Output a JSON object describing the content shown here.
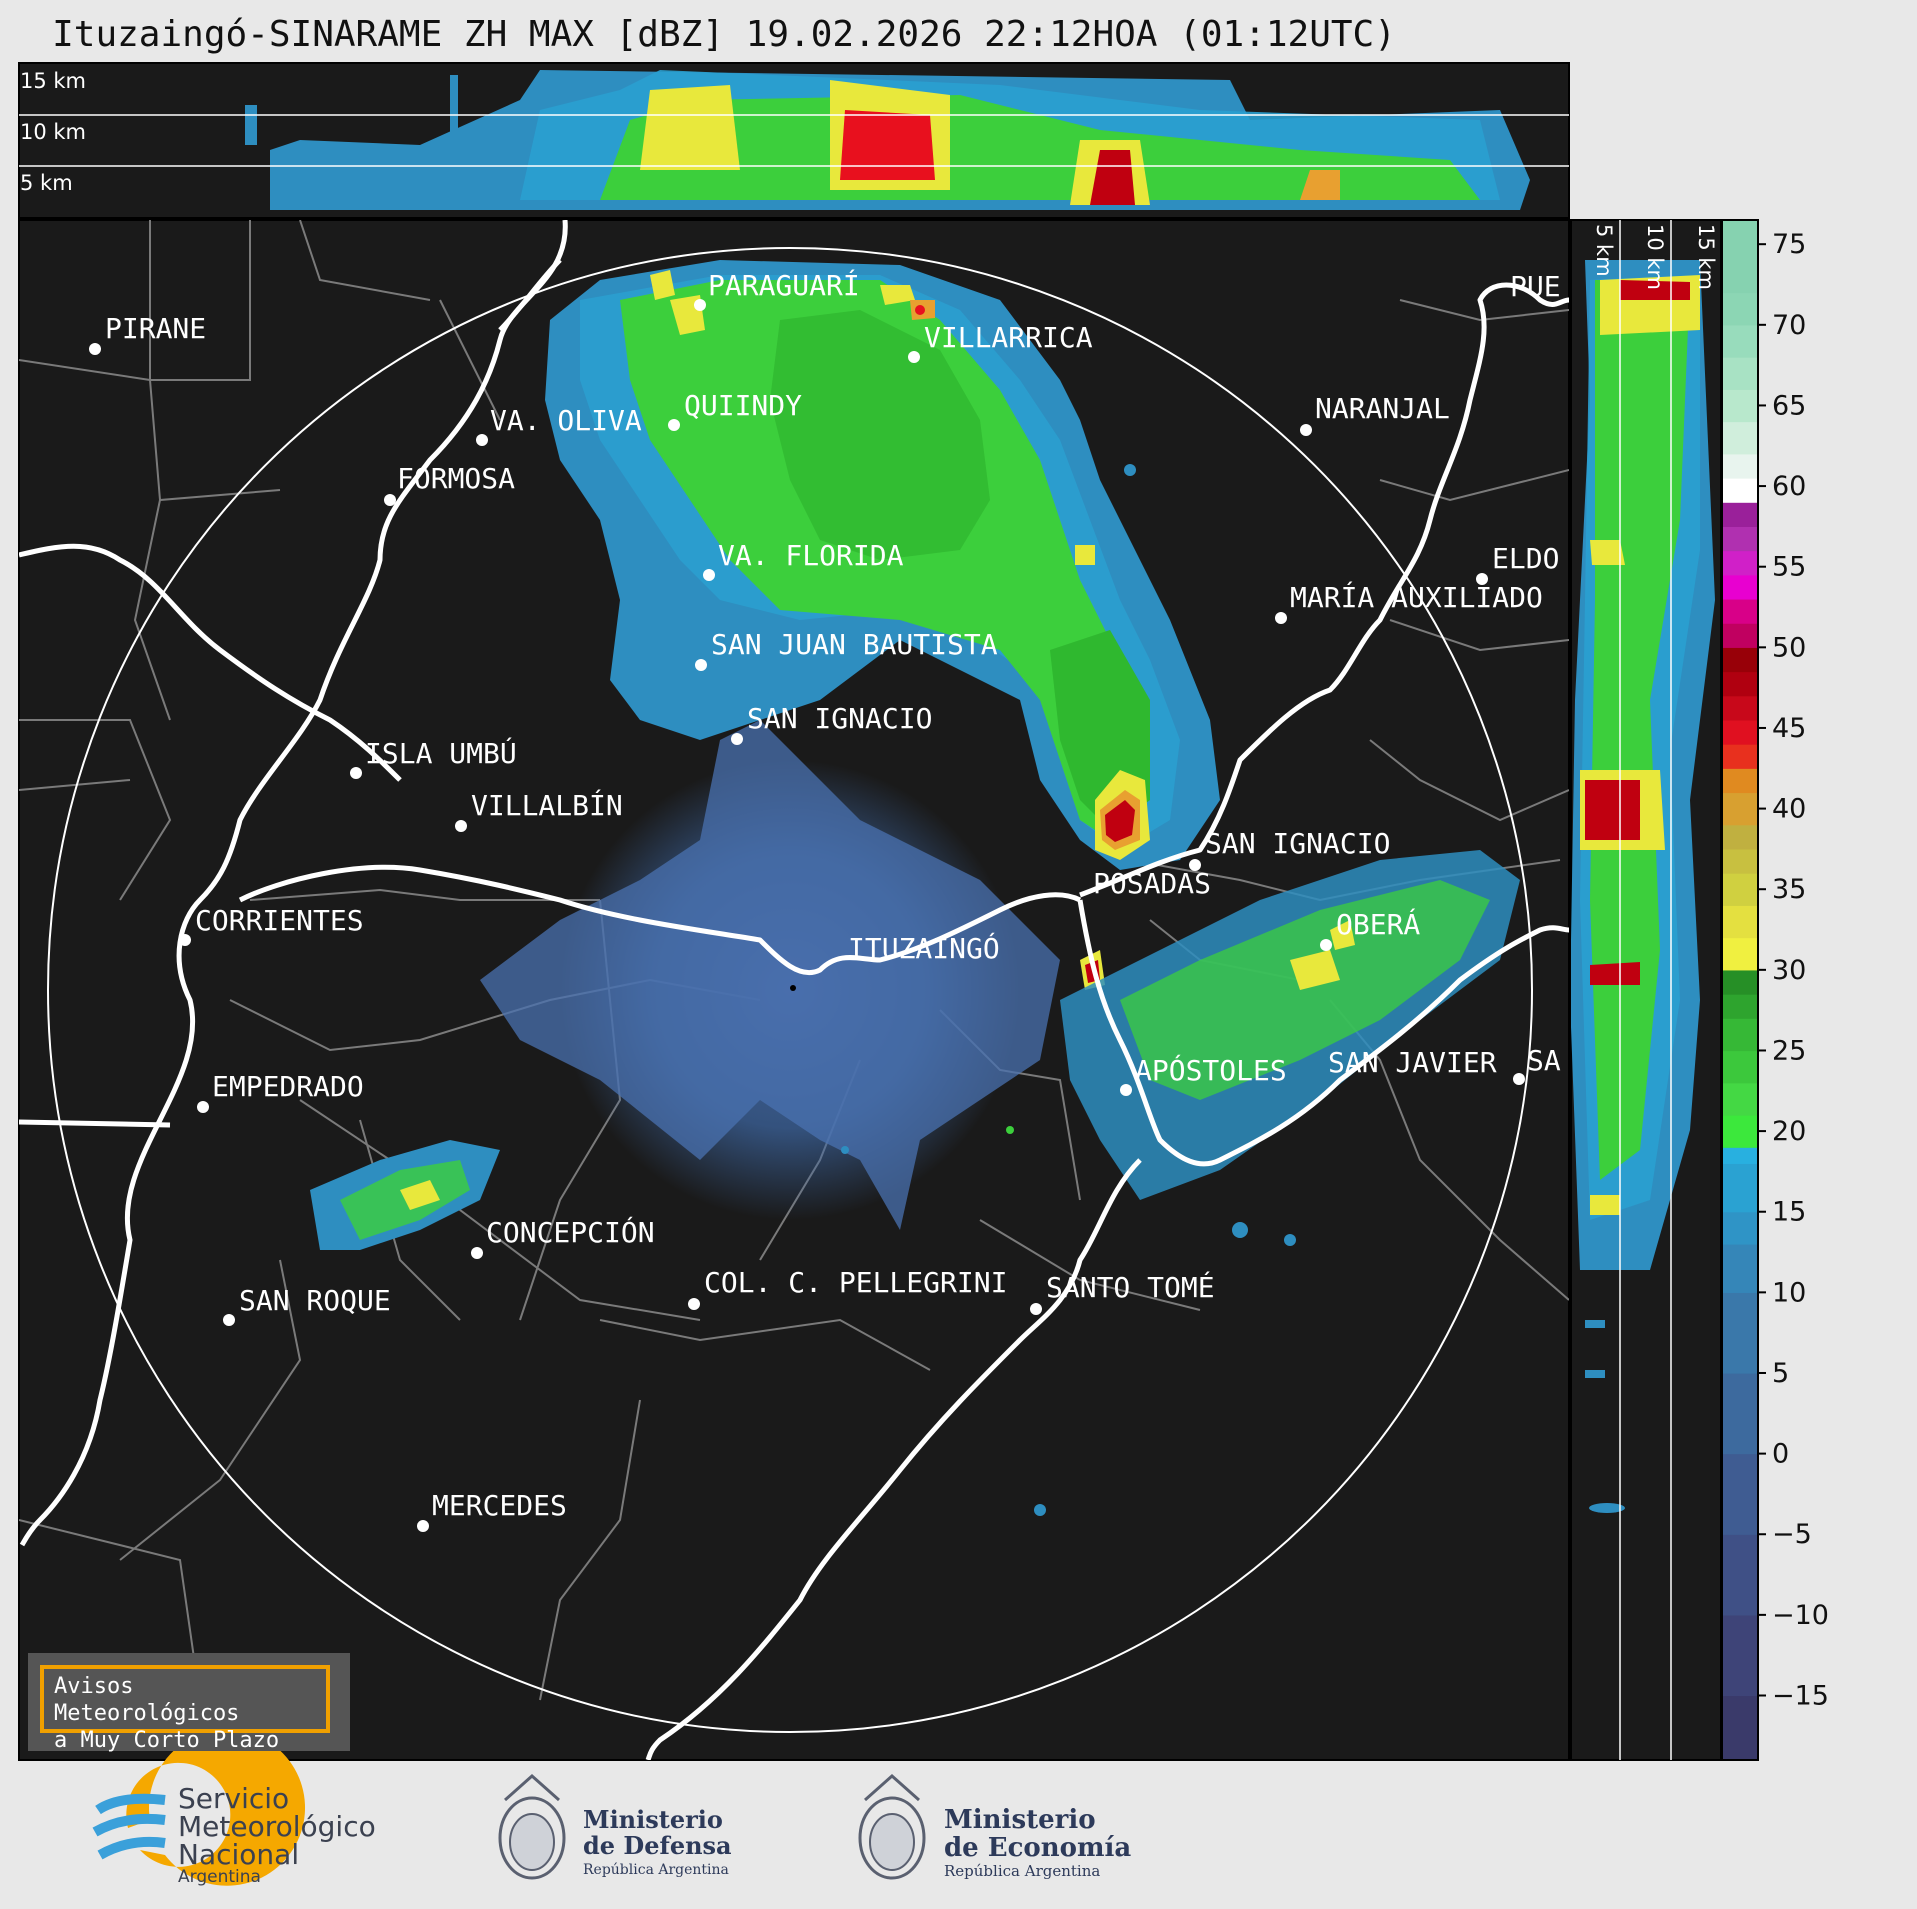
{
  "title": "Ituzaingó-SINARAME ZH MAX [dBZ] 19.02.2026 22:12HOA (01:12UTC)",
  "top_panel": {
    "altitudes": [
      "15 km",
      "10 km",
      "5 km"
    ]
  },
  "right_panel": {
    "altitudes": [
      "5 km",
      "10 km",
      "15 km"
    ]
  },
  "colorbar": {
    "ticks": [
      "75",
      "70",
      "65",
      "60",
      "55",
      "50",
      "45",
      "40",
      "35",
      "30",
      "25",
      "20",
      "15",
      "10",
      "5",
      "0",
      "−5",
      "−10",
      "−15"
    ]
  },
  "cities": [
    {
      "name": "PIRANE"
    },
    {
      "name": "PARAGUARÍ"
    },
    {
      "name": "VILLARRICA"
    },
    {
      "name": "QUIINDY"
    },
    {
      "name": "VA. OLIVA"
    },
    {
      "name": "FORMOSA"
    },
    {
      "name": "NARANJAL"
    },
    {
      "name": "PUE"
    },
    {
      "name": "VA. FLORIDA"
    },
    {
      "name": "ELDO"
    },
    {
      "name": "MARÍA AUXILIADO"
    },
    {
      "name": "SAN JUAN BAUTISTA"
    },
    {
      "name": "SAN IGNACIO"
    },
    {
      "name": "ISLA UMBÚ"
    },
    {
      "name": "VILLALBÍN"
    },
    {
      "name": "SAN IGNACIO"
    },
    {
      "name": "POSADAS"
    },
    {
      "name": "CORRIENTES"
    },
    {
      "name": "ITUZAINGÓ"
    },
    {
      "name": "OBERÁ"
    },
    {
      "name": "EMPEDRADO"
    },
    {
      "name": "APÓSTOLES"
    },
    {
      "name": "SAN JAVIER"
    },
    {
      "name": "SA"
    },
    {
      "name": "CONCEPCIÓN"
    },
    {
      "name": "SAN ROQUE"
    },
    {
      "name": "COL. C. PELLEGRINI"
    },
    {
      "name": "SANTO TOMÉ"
    },
    {
      "name": "MERCEDES"
    }
  ],
  "warning": {
    "line1": "Avisos Meteorológicos",
    "line2": "a Muy Corto Plazo"
  },
  "logos": {
    "smn": {
      "line1": "Servicio",
      "line2": "Meteorológico",
      "line3": "Nacional",
      "line4": "Argentina"
    },
    "defensa": {
      "line1": "Ministerio",
      "line2": "de Defensa",
      "line3": "República Argentina"
    },
    "economia": {
      "line1": "Ministerio",
      "line2": "de Economía",
      "line3": "República Argentina"
    }
  },
  "colors": {
    "background": "#1a1a1a",
    "frame": "#e8e8e8",
    "warning_border": "#f0a000"
  }
}
